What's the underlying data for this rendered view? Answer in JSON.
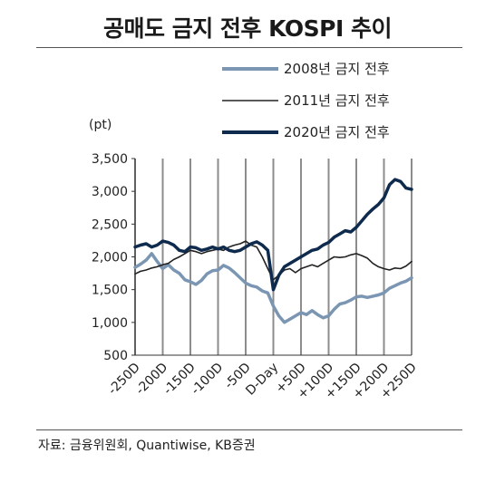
{
  "header": {
    "title": "공매도 금지 전후 KOSPI 추이"
  },
  "footer": {
    "source": "자료: 금융위원회, Quantiwise, KB증권"
  },
  "chart_data": {
    "type": "line",
    "title": "공매도 금지 전후 KOSPI 추이",
    "ylabel": "(pt)",
    "xlabel": "",
    "ylim": [
      500,
      3500
    ],
    "xlim": [
      -250,
      250
    ],
    "y_ticks": [
      500,
      1000,
      1500,
      2000,
      2500,
      3000,
      3500
    ],
    "y_tick_labels": [
      "500",
      "1,000",
      "1,500",
      "2,000",
      "2,500",
      "3,000",
      "3,500"
    ],
    "x_ticks": [
      -250,
      -200,
      -150,
      -100,
      -50,
      0,
      50,
      100,
      150,
      200,
      250
    ],
    "x_tick_labels": [
      "-250D",
      "-200D",
      "-150D",
      "-100D",
      "-50D",
      "D-Day",
      "+50D",
      "+100D",
      "+150D",
      "+200D",
      "+250D"
    ],
    "grid": "vertical",
    "legend_position": "top-right",
    "series": [
      {
        "name": "2008년 금지 전후",
        "color": "#7b96b3",
        "x": [
          -250,
          -240,
          -230,
          -220,
          -210,
          -200,
          -190,
          -180,
          -170,
          -160,
          -150,
          -140,
          -130,
          -120,
          -110,
          -100,
          -90,
          -80,
          -70,
          -60,
          -50,
          -40,
          -30,
          -20,
          -10,
          0,
          10,
          20,
          30,
          40,
          50,
          60,
          70,
          80,
          90,
          100,
          110,
          120,
          130,
          140,
          150,
          160,
          170,
          180,
          190,
          200,
          210,
          220,
          230,
          240,
          250
        ],
        "values": [
          1840,
          1890,
          1950,
          2050,
          1930,
          1820,
          1880,
          1800,
          1750,
          1650,
          1620,
          1580,
          1640,
          1740,
          1790,
          1800,
          1870,
          1830,
          1760,
          1680,
          1600,
          1560,
          1540,
          1480,
          1450,
          1250,
          1100,
          1000,
          1050,
          1100,
          1150,
          1120,
          1180,
          1120,
          1070,
          1100,
          1200,
          1280,
          1300,
          1340,
          1390,
          1400,
          1380,
          1400,
          1420,
          1450,
          1520,
          1560,
          1600,
          1630,
          1680
        ]
      },
      {
        "name": "2011년 금지 전후",
        "color": "#222222",
        "x": [
          -250,
          -240,
          -230,
          -220,
          -210,
          -200,
          -190,
          -180,
          -170,
          -160,
          -150,
          -140,
          -130,
          -120,
          -110,
          -100,
          -90,
          -80,
          -70,
          -60,
          -50,
          -40,
          -30,
          -20,
          -10,
          0,
          10,
          20,
          30,
          40,
          50,
          60,
          70,
          80,
          90,
          100,
          110,
          120,
          130,
          140,
          150,
          160,
          170,
          180,
          190,
          200,
          210,
          220,
          230,
          240,
          250
        ],
        "values": [
          1740,
          1780,
          1800,
          1830,
          1850,
          1880,
          1900,
          1960,
          2000,
          2050,
          2100,
          2080,
          2050,
          2080,
          2100,
          2120,
          2100,
          2150,
          2180,
          2200,
          2240,
          2180,
          2150,
          2000,
          1820,
          1650,
          1720,
          1800,
          1820,
          1760,
          1820,
          1850,
          1880,
          1850,
          1900,
          1950,
          2000,
          1990,
          2000,
          2030,
          2050,
          2020,
          1980,
          1900,
          1850,
          1820,
          1800,
          1830,
          1820,
          1860,
          1930
        ]
      },
      {
        "name": "2020년 금지 전후",
        "color": "#0e2a4d",
        "x": [
          -250,
          -240,
          -230,
          -220,
          -210,
          -200,
          -190,
          -180,
          -170,
          -160,
          -150,
          -140,
          -130,
          -120,
          -110,
          -100,
          -90,
          -80,
          -70,
          -60,
          -50,
          -40,
          -30,
          -20,
          -10,
          0,
          10,
          20,
          30,
          40,
          50,
          60,
          70,
          80,
          90,
          100,
          110,
          120,
          130,
          140,
          150,
          160,
          170,
          180,
          190,
          200,
          210,
          220,
          230,
          240,
          250
        ],
        "values": [
          2150,
          2180,
          2200,
          2150,
          2180,
          2240,
          2220,
          2180,
          2100,
          2080,
          2150,
          2140,
          2100,
          2120,
          2150,
          2120,
          2150,
          2100,
          2080,
          2100,
          2150,
          2200,
          2230,
          2180,
          2100,
          1500,
          1720,
          1850,
          1900,
          1950,
          2000,
          2050,
          2100,
          2120,
          2180,
          2220,
          2300,
          2350,
          2400,
          2380,
          2450,
          2550,
          2650,
          2730,
          2800,
          2900,
          3100,
          3180,
          3150,
          3050,
          3030
        ]
      }
    ]
  }
}
